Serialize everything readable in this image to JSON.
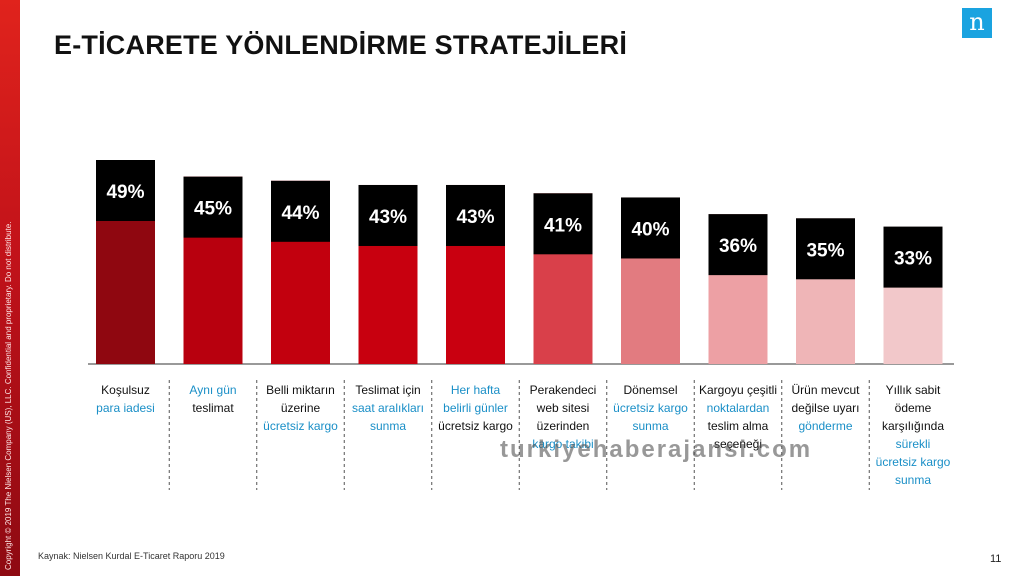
{
  "title": "E-TİCARETE YÖNLENDİRME STRATEJİLERİ",
  "logo": "n",
  "copyright": "Copyright © 2019 The Nielsen Company (US), LLC. Confidential and proprietary. Do not distribute.",
  "source": "Kaynak: Nielsen Kurdal E-Ticaret Raporu 2019",
  "page_number": "11",
  "watermark": "turkiyehaberajansi.com",
  "colors": {
    "plain_text": "#111111",
    "accent_text": "#1a8fc7",
    "label_bg": "#000000",
    "bars": [
      "#8f0710",
      "#b8000e",
      "#c2000e",
      "#c8000f",
      "#c90010",
      "#d9404a",
      "#e27b80",
      "#eda0a4",
      "#efb5b7",
      "#f2c8ca"
    ]
  },
  "chart_data": {
    "type": "bar",
    "title": "",
    "xlabel": "",
    "ylabel": "",
    "ylim": [
      0,
      55
    ],
    "grid": false,
    "values": [
      49,
      45,
      44,
      43,
      43,
      41,
      40,
      36,
      35,
      33
    ],
    "value_labels": [
      "49%",
      "45%",
      "44%",
      "43%",
      "43%",
      "41%",
      "40%",
      "36%",
      "35%",
      "33%"
    ],
    "categories": [
      [
        {
          "t": "Koşulsuz",
          "a": false
        },
        {
          "t": "para iadesi",
          "a": true
        }
      ],
      [
        {
          "t": "Aynı gün",
          "a": true
        },
        {
          "t": "teslimat",
          "a": false
        }
      ],
      [
        {
          "t": "Belli miktarın",
          "a": false
        },
        {
          "t": "üzerine",
          "a": false
        },
        {
          "t": "ücretsiz kargo",
          "a": true
        }
      ],
      [
        {
          "t": "Teslimat için",
          "a": false
        },
        {
          "t": "saat aralıkları",
          "a": true
        },
        {
          "t": "sunma",
          "a": true
        }
      ],
      [
        {
          "t": "Her hafta",
          "a": true
        },
        {
          "t": "belirli günler",
          "a": true
        },
        {
          "t": "ücretsiz kargo",
          "a": false
        }
      ],
      [
        {
          "t": "Perakendeci",
          "a": false
        },
        {
          "t": "web sitesi",
          "a": false
        },
        {
          "t": "üzerinden",
          "a": false
        },
        {
          "t": "kargo takibi",
          "a": true
        }
      ],
      [
        {
          "t": "Dönemsel",
          "a": false
        },
        {
          "t": "ücretsiz kargo",
          "a": true
        },
        {
          "t": "sunma",
          "a": true
        }
      ],
      [
        {
          "t": "Kargoyu çeşitli",
          "a": false
        },
        {
          "t": "noktalardan",
          "a": true
        },
        {
          "t": "teslim alma",
          "a": false
        },
        {
          "t": "seçeneği",
          "a": false
        }
      ],
      [
        {
          "t": "Ürün mevcut",
          "a": false
        },
        {
          "t": "değilse uyarı",
          "a": false
        },
        {
          "t": "gönderme",
          "a": true
        }
      ],
      [
        {
          "t": "Yıllık sabit",
          "a": false
        },
        {
          "t": "ödeme",
          "a": false
        },
        {
          "t": "karşılığında",
          "a": false
        },
        {
          "t": "sürekli",
          "a": true
        },
        {
          "t": "ücretsiz kargo",
          "a": true
        },
        {
          "t": "sunma",
          "a": true
        }
      ]
    ]
  }
}
